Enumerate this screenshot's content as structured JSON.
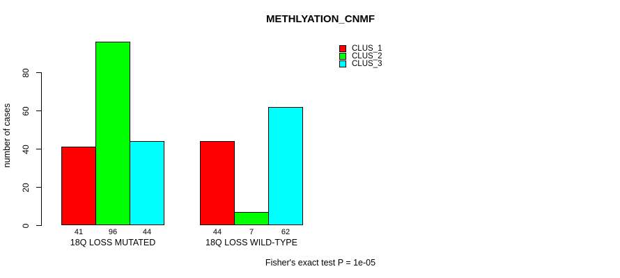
{
  "chart_data": {
    "type": "bar",
    "title": "METHLYATION_CNMF",
    "ylabel": "number of cases",
    "xlabel": "",
    "categories": [
      "18Q LOSS MUTATED",
      "18Q LOSS WILD-TYPE"
    ],
    "series": [
      {
        "name": "CLUS_1",
        "color": "#ff0000",
        "values": [
          41,
          44
        ]
      },
      {
        "name": "CLUS_2",
        "color": "#00ff00",
        "values": [
          96,
          7
        ]
      },
      {
        "name": "CLUS_3",
        "color": "#00ffff",
        "values": [
          44,
          62
        ]
      }
    ],
    "yticks": [
      0,
      20,
      40,
      60,
      80
    ],
    "ylim": [
      0,
      80
    ],
    "bar_value_labels": [
      [
        "41",
        "96",
        "44"
      ],
      [
        "44",
        "7",
        "62"
      ]
    ],
    "grid": false,
    "legend_position": "top-right",
    "annotation": "Fisher's exact test P = 1e-05",
    "text_color": "#000000",
    "background_color": "#ffffff"
  }
}
